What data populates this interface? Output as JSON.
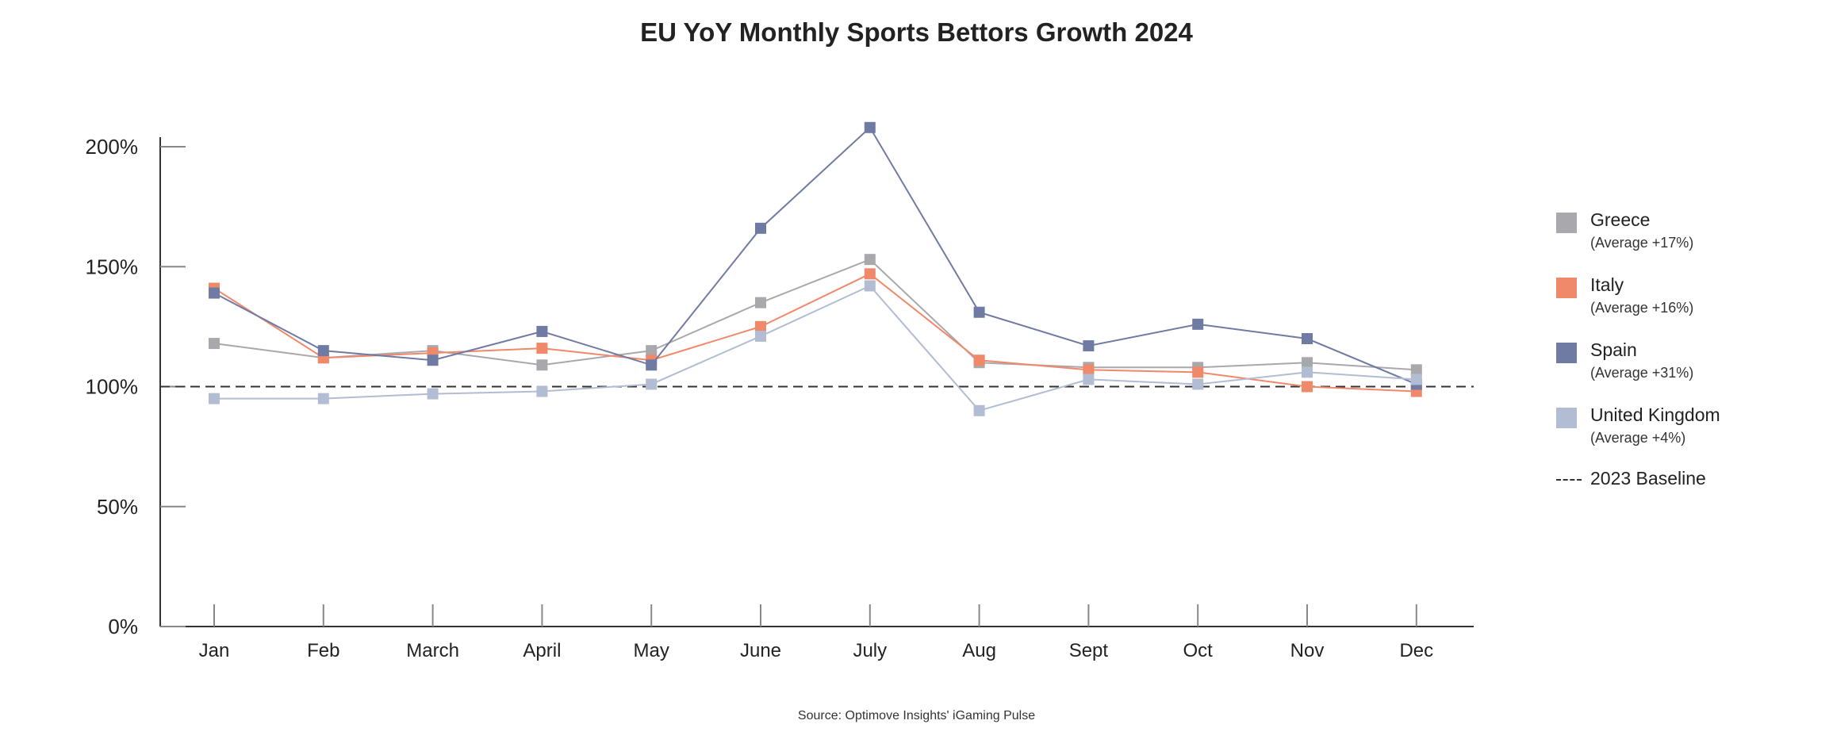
{
  "title": "EU YoY Monthly Sports Bettors Growth 2024",
  "source": "Source: Optimove Insights' iGaming Pulse",
  "legend": {
    "items": [
      {
        "name": "Greece",
        "note": "(Average +17%)",
        "color": "#a9a8ad"
      },
      {
        "name": "Italy",
        "note": "(Average +16%)",
        "color": "#f0886a"
      },
      {
        "name": "Spain",
        "note": "(Average +31%)",
        "color": "#6f7ba3"
      },
      {
        "name": "United Kingdom",
        "note": "(Average +4%)",
        "color": "#b2bcd3"
      }
    ],
    "baseline_label": "2023 Baseline"
  },
  "chart_data": {
    "type": "line",
    "title": "EU YoY Monthly Sports Bettors Growth 2024",
    "xlabel": "",
    "ylabel": "",
    "categories": [
      "Jan",
      "Feb",
      "March",
      "April",
      "May",
      "June",
      "July",
      "Aug",
      "Sept",
      "Oct",
      "Nov",
      "Dec"
    ],
    "yticks": [
      "0%",
      "50%",
      "100%",
      "150%",
      "200%"
    ],
    "ytick_values": [
      0,
      50,
      100,
      150,
      200
    ],
    "ylim": [
      0,
      200
    ],
    "baseline": 100,
    "grid": false,
    "legend_position": "right",
    "series": [
      {
        "name": "Greece",
        "color": "#a9a8ad",
        "values": [
          118,
          112,
          115,
          109,
          115,
          135,
          153,
          110,
          108,
          108,
          110,
          107
        ]
      },
      {
        "name": "Italy",
        "color": "#f0886a",
        "values": [
          141,
          112,
          114,
          116,
          111,
          125,
          147,
          111,
          107,
          106,
          100,
          98
        ]
      },
      {
        "name": "Spain",
        "color": "#6f7ba3",
        "values": [
          139,
          115,
          111,
          123,
          109,
          166,
          208,
          131,
          117,
          126,
          120,
          101
        ]
      },
      {
        "name": "United Kingdom",
        "color": "#b2bcd3",
        "values": [
          95,
          95,
          97,
          98,
          101,
          121,
          142,
          90,
          103,
          101,
          106,
          103
        ]
      }
    ]
  }
}
